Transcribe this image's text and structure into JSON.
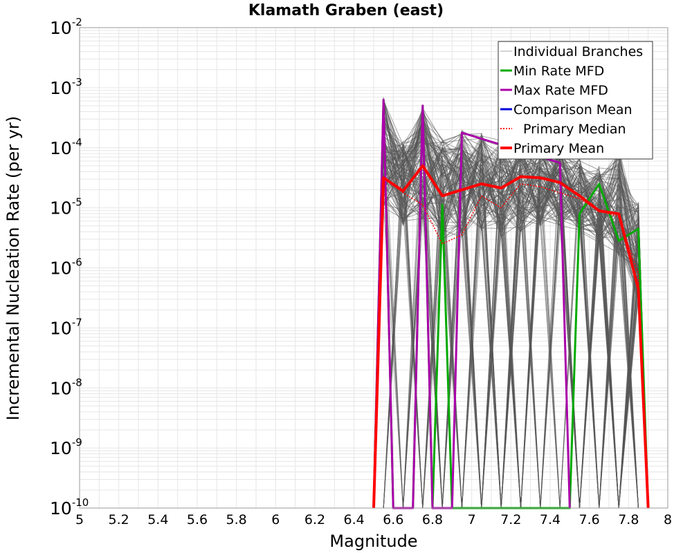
{
  "chart_data": {
    "type": "line",
    "title": "Klamath Graben (east)",
    "xlabel": "Magnitude",
    "ylabel": "Incremental Nucleation Rate (per yr)",
    "xlim": [
      5,
      8
    ],
    "ylim_log10": [
      -10,
      -2
    ],
    "yscale": "log",
    "grid": true,
    "legend_position": "top-right",
    "x_ticks": [
      "5",
      "5.2",
      "5.4",
      "5.6",
      "5.8",
      "6",
      "6.2",
      "6.4",
      "6.6",
      "6.8",
      "7",
      "7.2",
      "7.4",
      "7.6",
      "7.8",
      "8"
    ],
    "y_ticks": [
      {
        "base": "10",
        "exp": "-10"
      },
      {
        "base": "10",
        "exp": "-9"
      },
      {
        "base": "10",
        "exp": "-8"
      },
      {
        "base": "10",
        "exp": "-7"
      },
      {
        "base": "10",
        "exp": "-6"
      },
      {
        "base": "10",
        "exp": "-5"
      },
      {
        "base": "10",
        "exp": "-4"
      },
      {
        "base": "10",
        "exp": "-3"
      },
      {
        "base": "10",
        "exp": "-2"
      }
    ],
    "colors": {
      "branches": "#555555",
      "min_rate": "#00aa00",
      "max_rate": "#aa00aa",
      "comparison": "#0000dd",
      "primary_median": "#ff0000",
      "primary_mean": "#ff0000",
      "grid": "#e6e6e6"
    },
    "series": [
      {
        "name": "Min Rate MFD",
        "x": [
          6.5,
          6.55,
          6.6,
          6.7,
          6.75,
          6.8,
          6.85,
          6.9,
          7.5,
          7.55,
          7.65,
          7.75,
          7.85,
          7.9
        ],
        "log10_y": [
          -10,
          -3.2,
          -10,
          -10,
          -3.3,
          -10,
          -4.95,
          -10,
          -10,
          -5.1,
          -4.6,
          -5.55,
          -5.35,
          -10
        ]
      },
      {
        "name": "Max Rate MFD",
        "x": [
          6.5,
          6.55,
          6.6,
          6.7,
          6.75,
          6.8,
          6.9,
          6.95,
          7.45,
          7.5
        ],
        "log10_y": [
          -10,
          -3.2,
          -10,
          -10,
          -3.3,
          -10,
          -10,
          -3.75,
          -4.25,
          -10
        ]
      },
      {
        "name": "Comparison Mean",
        "x": [],
        "log10_y": []
      },
      {
        "name": "Primary Median",
        "x": [
          6.5,
          6.55,
          6.65,
          6.75,
          6.85,
          6.95,
          7.05,
          7.15,
          7.25,
          7.35,
          7.45,
          7.55,
          7.65,
          7.75,
          7.85,
          7.9
        ],
        "log10_y": [
          -10,
          -4.5,
          -4.75,
          -4.95,
          -5.6,
          -5.45,
          -4.8,
          -5.0,
          -4.6,
          -4.65,
          -4.75,
          -4.85,
          -5.05,
          -5.15,
          -6.1,
          -10
        ]
      },
      {
        "name": "Primary Mean",
        "x": [
          6.5,
          6.55,
          6.65,
          6.75,
          6.85,
          6.95,
          7.05,
          7.15,
          7.25,
          7.35,
          7.45,
          7.55,
          7.65,
          7.75,
          7.85,
          7.9
        ],
        "log10_y": [
          -10,
          -4.5,
          -4.72,
          -4.3,
          -4.8,
          -4.7,
          -4.6,
          -4.67,
          -4.48,
          -4.5,
          -4.58,
          -4.8,
          -5.05,
          -5.1,
          -6.35,
          -10
        ]
      }
    ],
    "branch_envelope": {
      "x": [
        6.55,
        6.65,
        6.75,
        6.85,
        6.95,
        7.05,
        7.15,
        7.25,
        7.35,
        7.45,
        7.55,
        7.65,
        7.75,
        7.85
      ],
      "log10_max": [
        -3.15,
        -3.9,
        -3.3,
        -3.85,
        -3.7,
        -3.75,
        -3.8,
        -3.85,
        -3.85,
        -4.0,
        -4.1,
        -4.3,
        -4.0,
        -4.9
      ],
      "log10_min": [
        -5.0,
        -5.3,
        -5.2,
        -5.6,
        -5.5,
        -5.4,
        -5.5,
        -5.4,
        -5.3,
        -5.3,
        -5.4,
        -5.6,
        -5.8,
        -6.6
      ]
    },
    "legend": [
      {
        "label": "Individual Branches",
        "style": "thin-gray"
      },
      {
        "label": "Min Rate MFD",
        "style": "solid-green"
      },
      {
        "label": "Max Rate MFD",
        "style": "solid-magenta"
      },
      {
        "label": "Comparison Mean",
        "style": "solid-blue"
      },
      {
        "label": "Primary Median",
        "style": "dotted-red"
      },
      {
        "label": "Primary Mean",
        "style": "thick-red"
      }
    ]
  }
}
